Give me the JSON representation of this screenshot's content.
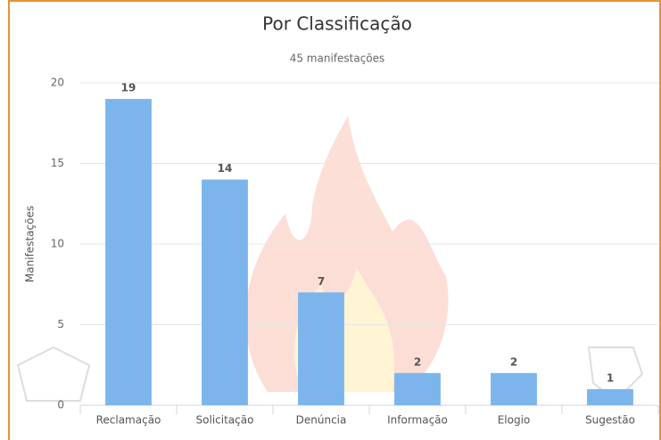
{
  "chart_data": {
    "type": "bar",
    "title": "Por Classificação",
    "subtitle": "45 manifestações",
    "y_label": "Manifestações",
    "categories": [
      "Reclamação",
      "Solicitação",
      "Denúncia",
      "Informação",
      "Elogio",
      "Sugestão"
    ],
    "values": [
      19,
      14,
      7,
      2,
      2,
      1
    ],
    "color": "#7cb5ec",
    "ylim": [
      0,
      20
    ],
    "yticks": [
      0,
      5,
      10,
      15,
      20
    ],
    "grid": true
  }
}
